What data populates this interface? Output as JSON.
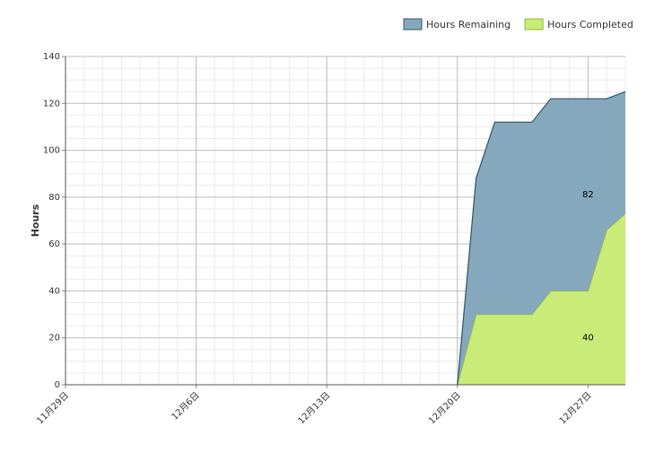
{
  "chart_data": {
    "type": "stacked-area",
    "y_label": "Hours",
    "categories": [
      "11月29日",
      null,
      null,
      null,
      null,
      null,
      null,
      "12月6日",
      null,
      null,
      null,
      null,
      null,
      null,
      "12月13日",
      null,
      null,
      null,
      null,
      null,
      null,
      "12月20日",
      null,
      null,
      null,
      null,
      null,
      null,
      "12月27日",
      null,
      null
    ],
    "series": [
      {
        "name": "Hours Remaining",
        "color": "#86a8bc",
        "stroke": "#2f5368",
        "values": [
          null,
          null,
          null,
          null,
          null,
          null,
          null,
          null,
          null,
          null,
          null,
          null,
          null,
          null,
          null,
          null,
          null,
          null,
          null,
          null,
          null,
          0,
          58,
          82,
          82,
          82,
          82,
          82,
          82,
          56,
          52
        ]
      },
      {
        "name": "Hours Completed",
        "color": "#c9eb78",
        "stroke": "#8cbf2a",
        "values": [
          null,
          null,
          null,
          null,
          null,
          null,
          null,
          null,
          null,
          null,
          null,
          null,
          null,
          null,
          null,
          null,
          null,
          null,
          null,
          null,
          null,
          0,
          30,
          30,
          30,
          30,
          40,
          40,
          40,
          66,
          73
        ]
      }
    ],
    "ylim": [
      0,
      140
    ],
    "yticks": [
      0,
      20,
      40,
      60,
      80,
      100,
      120,
      140
    ],
    "grid": true,
    "legend": "top-right"
  }
}
